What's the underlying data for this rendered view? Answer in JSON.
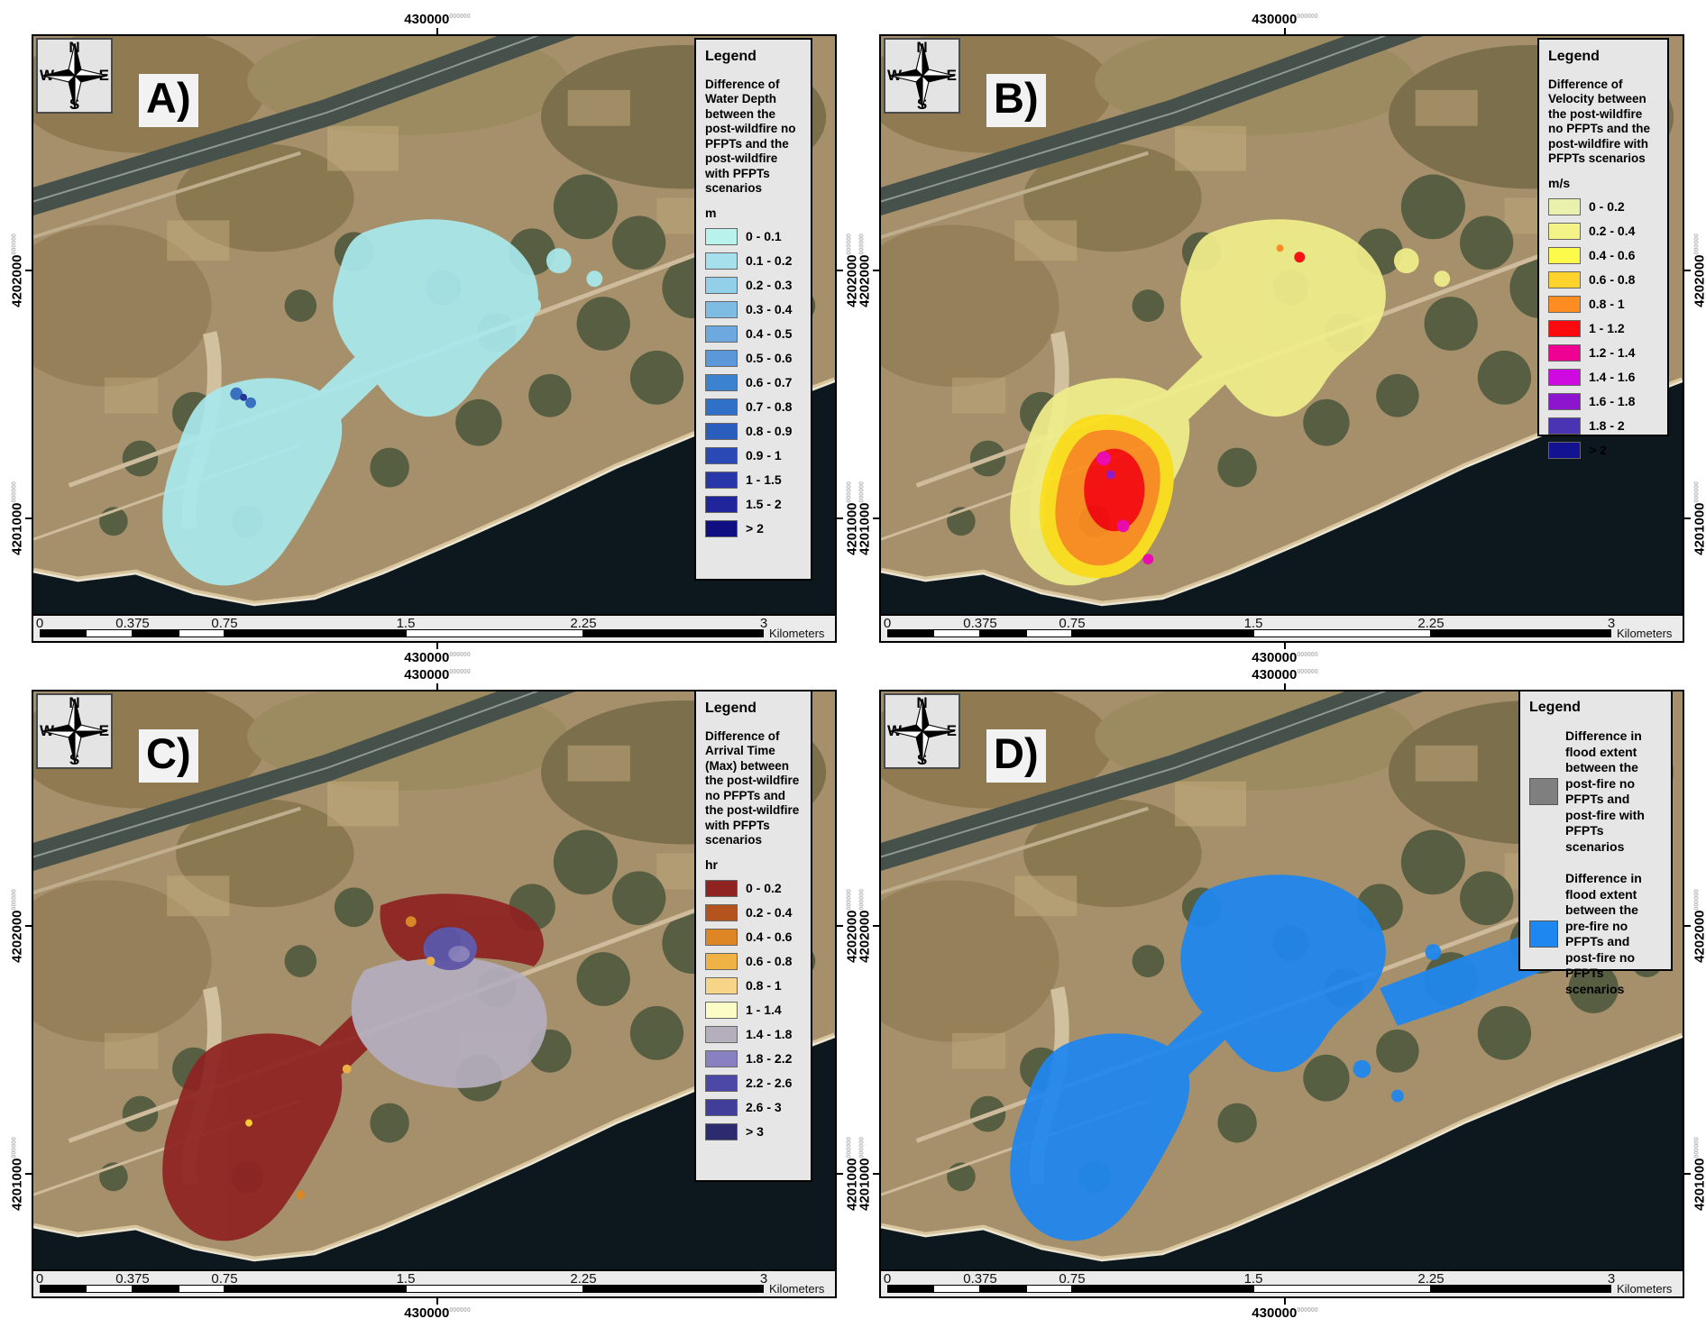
{
  "compass": {
    "north": "N",
    "east": "E",
    "south": "S",
    "west": "W"
  },
  "grid_labels": {
    "x": "430000",
    "y_upper": "4202000",
    "y_lower": "4201000",
    "superscript": "000000"
  },
  "scalebar": {
    "ticks": [
      "0",
      "0.375",
      "0.75",
      "1.5",
      "2.25",
      "3"
    ],
    "unit": "Kilometers"
  },
  "panels": [
    {
      "label": "A)",
      "legend": {
        "title": "Legend",
        "description": "Difference of Water Depth between the post-wildfire no PFPTs and the post-wildfire with PFPTs scenarios",
        "unit": "m",
        "entries": [
          {
            "label": "0 - 0.1",
            "color": "#b9f1ed"
          },
          {
            "label": "0.1 - 0.2",
            "color": "#a5e0ec"
          },
          {
            "label": "0.2 - 0.3",
            "color": "#93cfe9"
          },
          {
            "label": "0.3 - 0.4",
            "color": "#7fbce4"
          },
          {
            "label": "0.4 - 0.5",
            "color": "#6da9df"
          },
          {
            "label": "0.5 - 0.6",
            "color": "#5b97d9"
          },
          {
            "label": "0.6 - 0.7",
            "color": "#3b82d1"
          },
          {
            "label": "0.7 - 0.8",
            "color": "#3070c8"
          },
          {
            "label": "0.8 - 0.9",
            "color": "#2b5dbd"
          },
          {
            "label": "0.9 - 1",
            "color": "#2a49b4"
          },
          {
            "label": "1 - 1.5",
            "color": "#2737aa"
          },
          {
            "label": "1.5 - 2",
            "color": "#20259c"
          },
          {
            "label": "> 2",
            "color": "#0f0e82"
          }
        ]
      }
    },
    {
      "label": "B)",
      "legend": {
        "title": "Legend",
        "description": "Difference of Velocity between the post-wildfire no PFPTs and the post-wildfire with PFPTs scenarios",
        "unit": "m/s",
        "entries": [
          {
            "label": "0 - 0.2",
            "color": "#eaf0ae"
          },
          {
            "label": "0.2 - 0.4",
            "color": "#f3f388"
          },
          {
            "label": "0.4 - 0.6",
            "color": "#fcfa4a"
          },
          {
            "label": "0.6 - 0.8",
            "color": "#ffd22e"
          },
          {
            "label": "0.8 - 1",
            "color": "#fd8d20"
          },
          {
            "label": "1 - 1.2",
            "color": "#fb0a0d"
          },
          {
            "label": "1.2 - 1.4",
            "color": "#ef0192"
          },
          {
            "label": "1.4 - 1.6",
            "color": "#cf0ae0"
          },
          {
            "label": "1.6 - 1.8",
            "color": "#8c15cd"
          },
          {
            "label": "1.8 - 2",
            "color": "#4a34b3"
          },
          {
            "label": "> 2",
            "color": "#131293"
          }
        ]
      }
    },
    {
      "label": "C)",
      "legend": {
        "title": "Legend",
        "description": "Difference of Arrival Time (Max) between the post-wildfire no PFPTs and the post-wildfire with PFPTs scenarios",
        "unit": "hr",
        "entries": [
          {
            "label": "0 - 0.2",
            "color": "#8e2322"
          },
          {
            "label": "0.2 - 0.4",
            "color": "#b5531f"
          },
          {
            "label": "0.4 - 0.6",
            "color": "#dd8623"
          },
          {
            "label": "0.6 - 0.8",
            "color": "#f0b244"
          },
          {
            "label": "0.8 - 1",
            "color": "#f6d488"
          },
          {
            "label": "1 - 1.4",
            "color": "#fbfcc6"
          },
          {
            "label": "1.4 - 1.8",
            "color": "#b5aebd"
          },
          {
            "label": "1.8 - 2.2",
            "color": "#8781c1"
          },
          {
            "label": "2.2 - 2.6",
            "color": "#4c48a8"
          },
          {
            "label": "2.6 - 3",
            "color": "#403e98"
          },
          {
            "label": "> 3",
            "color": "#2c2b6f"
          }
        ]
      }
    },
    {
      "label": "D)",
      "legend": {
        "title": "Legend",
        "entries": [
          {
            "label": "Difference in flood extent between the post-fire no PFPTs and post-fire with PFPTs scenarios",
            "color": "#7f7f7f"
          },
          {
            "label": "Difference in flood extent between the pre-fire no PFPTs and post-fire no PFPTs scenarios",
            "color": "#1e87f0"
          }
        ]
      }
    }
  ]
}
